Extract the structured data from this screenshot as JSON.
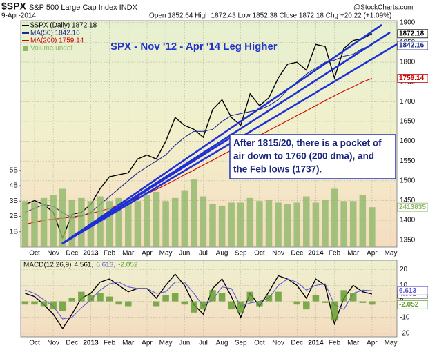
{
  "header": {
    "symbol": "$SPX",
    "name": "S&P 500 Large Cap Index INDX",
    "date": "9-Apr-2014",
    "quote": "Open 1852.64 High 1872.43 Low 1852.38 Close 1872.18 Chg +20.22 (+1.09%)",
    "source": "@StockCharts.com"
  },
  "chart_data": [
    {
      "type": "line",
      "title": "SPX - Nov '12 - Apr '14 Leg Higher",
      "annotation": [
        "After 1815/20, there is a pocket of",
        "air down to 1760 (200 dma), and",
        "the Feb lows (1737)."
      ],
      "categories": [
        null,
        "Oct",
        null,
        "Nov",
        null,
        "Dec",
        null,
        "2013",
        null,
        "Feb",
        null,
        "Mar",
        null,
        "Apr",
        null,
        "May",
        null,
        "Jun",
        null,
        "Jul",
        null,
        "Aug",
        null,
        "Sep",
        null,
        "Oct",
        null,
        "Nov",
        null,
        "Dec",
        null,
        "2014",
        null,
        "Feb",
        null,
        "Mar",
        null,
        "Apr",
        null,
        "May"
      ],
      "series": [
        {
          "name": "$SPX (Daily) 1872.18",
          "color": "#000000",
          "last": 1872.18,
          "values": [
            1440,
            1450,
            1440,
            1420,
            1355,
            1415,
            1420,
            1440,
            1480,
            1510,
            1515,
            1520,
            1555,
            1565,
            1555,
            1600,
            1660,
            1640,
            1630,
            1610,
            1680,
            1705,
            1660,
            1640,
            1720,
            1690,
            1710,
            1760,
            1795,
            1800,
            1780,
            1845,
            1840,
            1760,
            1835,
            1855,
            1860,
            1872.18,
            null,
            null
          ]
        },
        {
          "name": "MA(50) 1842.16",
          "color": "#1a2a8a",
          "last": 1842.16,
          "values": [
            1420,
            1430,
            1440,
            1435,
            1420,
            1405,
            1410,
            1420,
            1440,
            1460,
            1480,
            1500,
            1520,
            1535,
            1550,
            1565,
            1590,
            1610,
            1625,
            1625,
            1630,
            1650,
            1665,
            1670,
            1675,
            1680,
            1690,
            1705,
            1730,
            1750,
            1770,
            1785,
            1800,
            1805,
            1815,
            1820,
            1835,
            1842.16,
            null,
            null
          ]
        },
        {
          "name": "MA(200) 1759.14",
          "color": "#cc0000",
          "last": 1759.14,
          "values": [
            1390,
            1395,
            1400,
            1403,
            1405,
            1408,
            1412,
            1417,
            1423,
            1430,
            1438,
            1447,
            1457,
            1467,
            1478,
            1490,
            1502,
            1515,
            1527,
            1540,
            1552,
            1565,
            1577,
            1590,
            1602,
            1615,
            1627,
            1640,
            1652,
            1665,
            1677,
            1690,
            1703,
            1715,
            1727,
            1738,
            1750,
            1759.14,
            null,
            null
          ]
        },
        {
          "name": "Volume undef",
          "color": "#8fb86a",
          "type": "bar",
          "axis": "y2",
          "last": 2413835,
          "values": [
            3.0,
            2.9,
            3.2,
            3.4,
            3.8,
            3.1,
            3.2,
            3.0,
            3.3,
            3.0,
            3.2,
            3.1,
            3.0,
            3.4,
            3.6,
            3.0,
            3.2,
            3.7,
            4.4,
            3.3,
            2.8,
            2.7,
            2.9,
            2.9,
            3.2,
            3.0,
            3.1,
            2.9,
            2.8,
            2.9,
            3.3,
            2.9,
            3.1,
            3.8,
            3.0,
            3.0,
            3.4,
            2.6,
            null,
            null
          ]
        }
      ],
      "ylim": [
        1332,
        1905
      ],
      "yticks": [
        1350,
        1400,
        1450,
        1500,
        1550,
        1600,
        1650,
        1700,
        1750,
        1800,
        1850,
        1900
      ],
      "y2lim": [
        0,
        14.74
      ],
      "y2ticks": [
        {
          "value": 1,
          "label": "1B"
        },
        {
          "value": 2,
          "label": "2B"
        },
        {
          "value": 3,
          "label": "3B"
        },
        {
          "value": 4,
          "label": "4B"
        },
        {
          "value": 5,
          "label": "5B"
        }
      ],
      "grid": true
    },
    {
      "type": "line",
      "title": "MACD(12,26,9)",
      "categories": [
        null,
        "Oct",
        null,
        "Nov",
        null,
        "Dec",
        null,
        "2013",
        null,
        "Feb",
        null,
        "Mar",
        null,
        "Apr",
        null,
        "May",
        null,
        "Jun",
        null,
        "Jul",
        null,
        "Aug",
        null,
        "Sep",
        null,
        "Oct",
        null,
        "Nov",
        null,
        "Dec",
        null,
        "2014",
        null,
        "Feb",
        null,
        "Mar",
        null,
        "Apr",
        null,
        "May"
      ],
      "series": [
        {
          "color": "#000000",
          "last": 4.561,
          "last_label": "4.561,",
          "values": [
            5,
            3,
            -2,
            -8,
            -17,
            -8,
            2,
            5,
            12,
            14,
            10,
            6,
            8,
            8,
            2,
            10,
            17,
            10,
            -2,
            -8,
            8,
            14,
            3,
            -10,
            5,
            -3,
            6,
            16,
            14,
            10,
            2,
            14,
            10,
            -14,
            2,
            10,
            6,
            4.561,
            null,
            null
          ]
        },
        {
          "color": "#5a5ad6",
          "last": 6.613,
          "last_label": "6.613,",
          "values": [
            7,
            5,
            1,
            -3,
            -11,
            -10,
            -4,
            1,
            7,
            11,
            12,
            9,
            8,
            8,
            5,
            6,
            12,
            12,
            5,
            -3,
            1,
            9,
            8,
            -3,
            -1,
            0,
            2,
            10,
            14,
            12,
            7,
            10,
            11,
            -2,
            -5,
            5,
            7,
            6.613,
            null,
            null
          ]
        },
        {
          "color": "#5f9a2e",
          "type": "bar",
          "last": -2.052,
          "last_label": "-2.052",
          "values": [
            -2,
            -2,
            -3,
            -5,
            -6,
            2,
            6,
            4,
            5,
            3,
            -2,
            -3,
            0,
            0,
            -3,
            4,
            5,
            -2,
            -7,
            -5,
            7,
            5,
            -5,
            -7,
            6,
            -3,
            4,
            6,
            0,
            -2,
            -5,
            4,
            -1,
            -12,
            7,
            5,
            -1,
            -2.052,
            null,
            null
          ]
        }
      ],
      "ylim": [
        -22.2,
        25.7
      ],
      "yticks": [
        -20,
        -10,
        0,
        10,
        20
      ],
      "grid": true
    }
  ]
}
